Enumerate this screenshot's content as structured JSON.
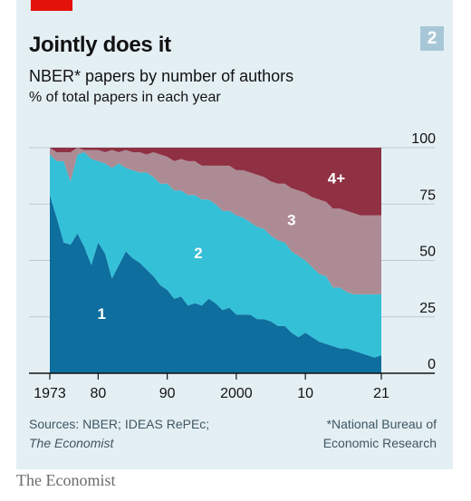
{
  "header": {
    "chart_number": "2",
    "title": "Jointly does it",
    "subtitle": "NBER* papers by number of authors",
    "unit_label": "% of total papers in each year"
  },
  "footer": {
    "sources_line1": "Sources: NBER; IDEAS RePEc;",
    "sources_line2": "The Economist",
    "note_line1": "*National Bureau of",
    "note_line2": "Economic Research",
    "logo": "The Economist"
  },
  "colors": {
    "one_author": "#0e6e9e",
    "two_authors": "#34c0d6",
    "three_authors": "#ad8b94",
    "four_plus_authors": "#8f3043",
    "panel_background": "#e4eff4",
    "accent_red": "#e3120b"
  },
  "chart_data": {
    "type": "area",
    "stacked": true,
    "ylim": [
      0,
      100
    ],
    "xlim": [
      1973,
      2021
    ],
    "y_ticks": [
      0,
      25,
      50,
      75,
      100
    ],
    "x_ticks": [
      1973,
      1980,
      1990,
      2000,
      2010,
      2021
    ],
    "x_tick_labels": [
      "1973",
      "80",
      "90",
      "2000",
      "10",
      "21"
    ],
    "grid": true,
    "series_labels_on_chart": true,
    "years": [
      1973,
      1974,
      1975,
      1976,
      1977,
      1978,
      1979,
      1980,
      1981,
      1982,
      1983,
      1984,
      1985,
      1986,
      1987,
      1988,
      1989,
      1990,
      1991,
      1992,
      1993,
      1994,
      1995,
      1996,
      1997,
      1998,
      1999,
      2000,
      2001,
      2002,
      2003,
      2004,
      2005,
      2006,
      2007,
      2008,
      2009,
      2010,
      2011,
      2012,
      2013,
      2014,
      2015,
      2016,
      2017,
      2018,
      2019,
      2020,
      2021
    ],
    "series": [
      {
        "name": "1",
        "values": [
          79,
          69,
          58,
          57,
          62,
          56,
          48,
          58,
          53,
          42,
          48,
          54,
          51,
          49,
          46,
          43,
          39,
          37,
          33,
          34,
          30,
          31,
          30,
          33,
          31,
          28,
          29,
          26,
          26,
          26,
          24,
          24,
          23,
          21,
          21,
          18,
          16,
          18,
          16,
          14,
          13,
          12,
          11,
          11,
          10,
          9,
          8,
          7,
          8
        ]
      },
      {
        "name": "2",
        "values": [
          18,
          25,
          36,
          28,
          35,
          42,
          47,
          36,
          40,
          49,
          45,
          37,
          39,
          40,
          43,
          44,
          45,
          47,
          48,
          47,
          49,
          48,
          47,
          44,
          44,
          44,
          43,
          44,
          43,
          41,
          41,
          40,
          38,
          38,
          37,
          36,
          36,
          32,
          31,
          30,
          30,
          26,
          27,
          25,
          25,
          26,
          27,
          28,
          27
        ]
      },
      {
        "name": "3",
        "values": [
          3,
          4,
          4,
          13,
          3,
          1,
          4,
          5,
          5,
          8,
          5,
          8,
          8,
          9,
          8,
          11,
          13,
          12,
          13,
          14,
          15,
          15,
          15,
          15,
          17,
          20,
          20,
          20,
          21,
          22,
          23,
          23,
          24,
          25,
          26,
          28,
          29,
          30,
          31,
          33,
          33,
          35,
          35,
          36,
          36,
          35,
          35,
          35,
          35
        ]
      },
      {
        "name": "4+",
        "values": [
          0,
          2,
          2,
          2,
          0,
          1,
          1,
          1,
          2,
          1,
          2,
          1,
          2,
          2,
          3,
          2,
          3,
          4,
          6,
          5,
          6,
          6,
          8,
          8,
          8,
          8,
          8,
          10,
          10,
          11,
          12,
          13,
          15,
          16,
          16,
          18,
          19,
          20,
          22,
          23,
          24,
          27,
          27,
          28,
          29,
          30,
          30,
          30,
          30
        ]
      }
    ]
  }
}
